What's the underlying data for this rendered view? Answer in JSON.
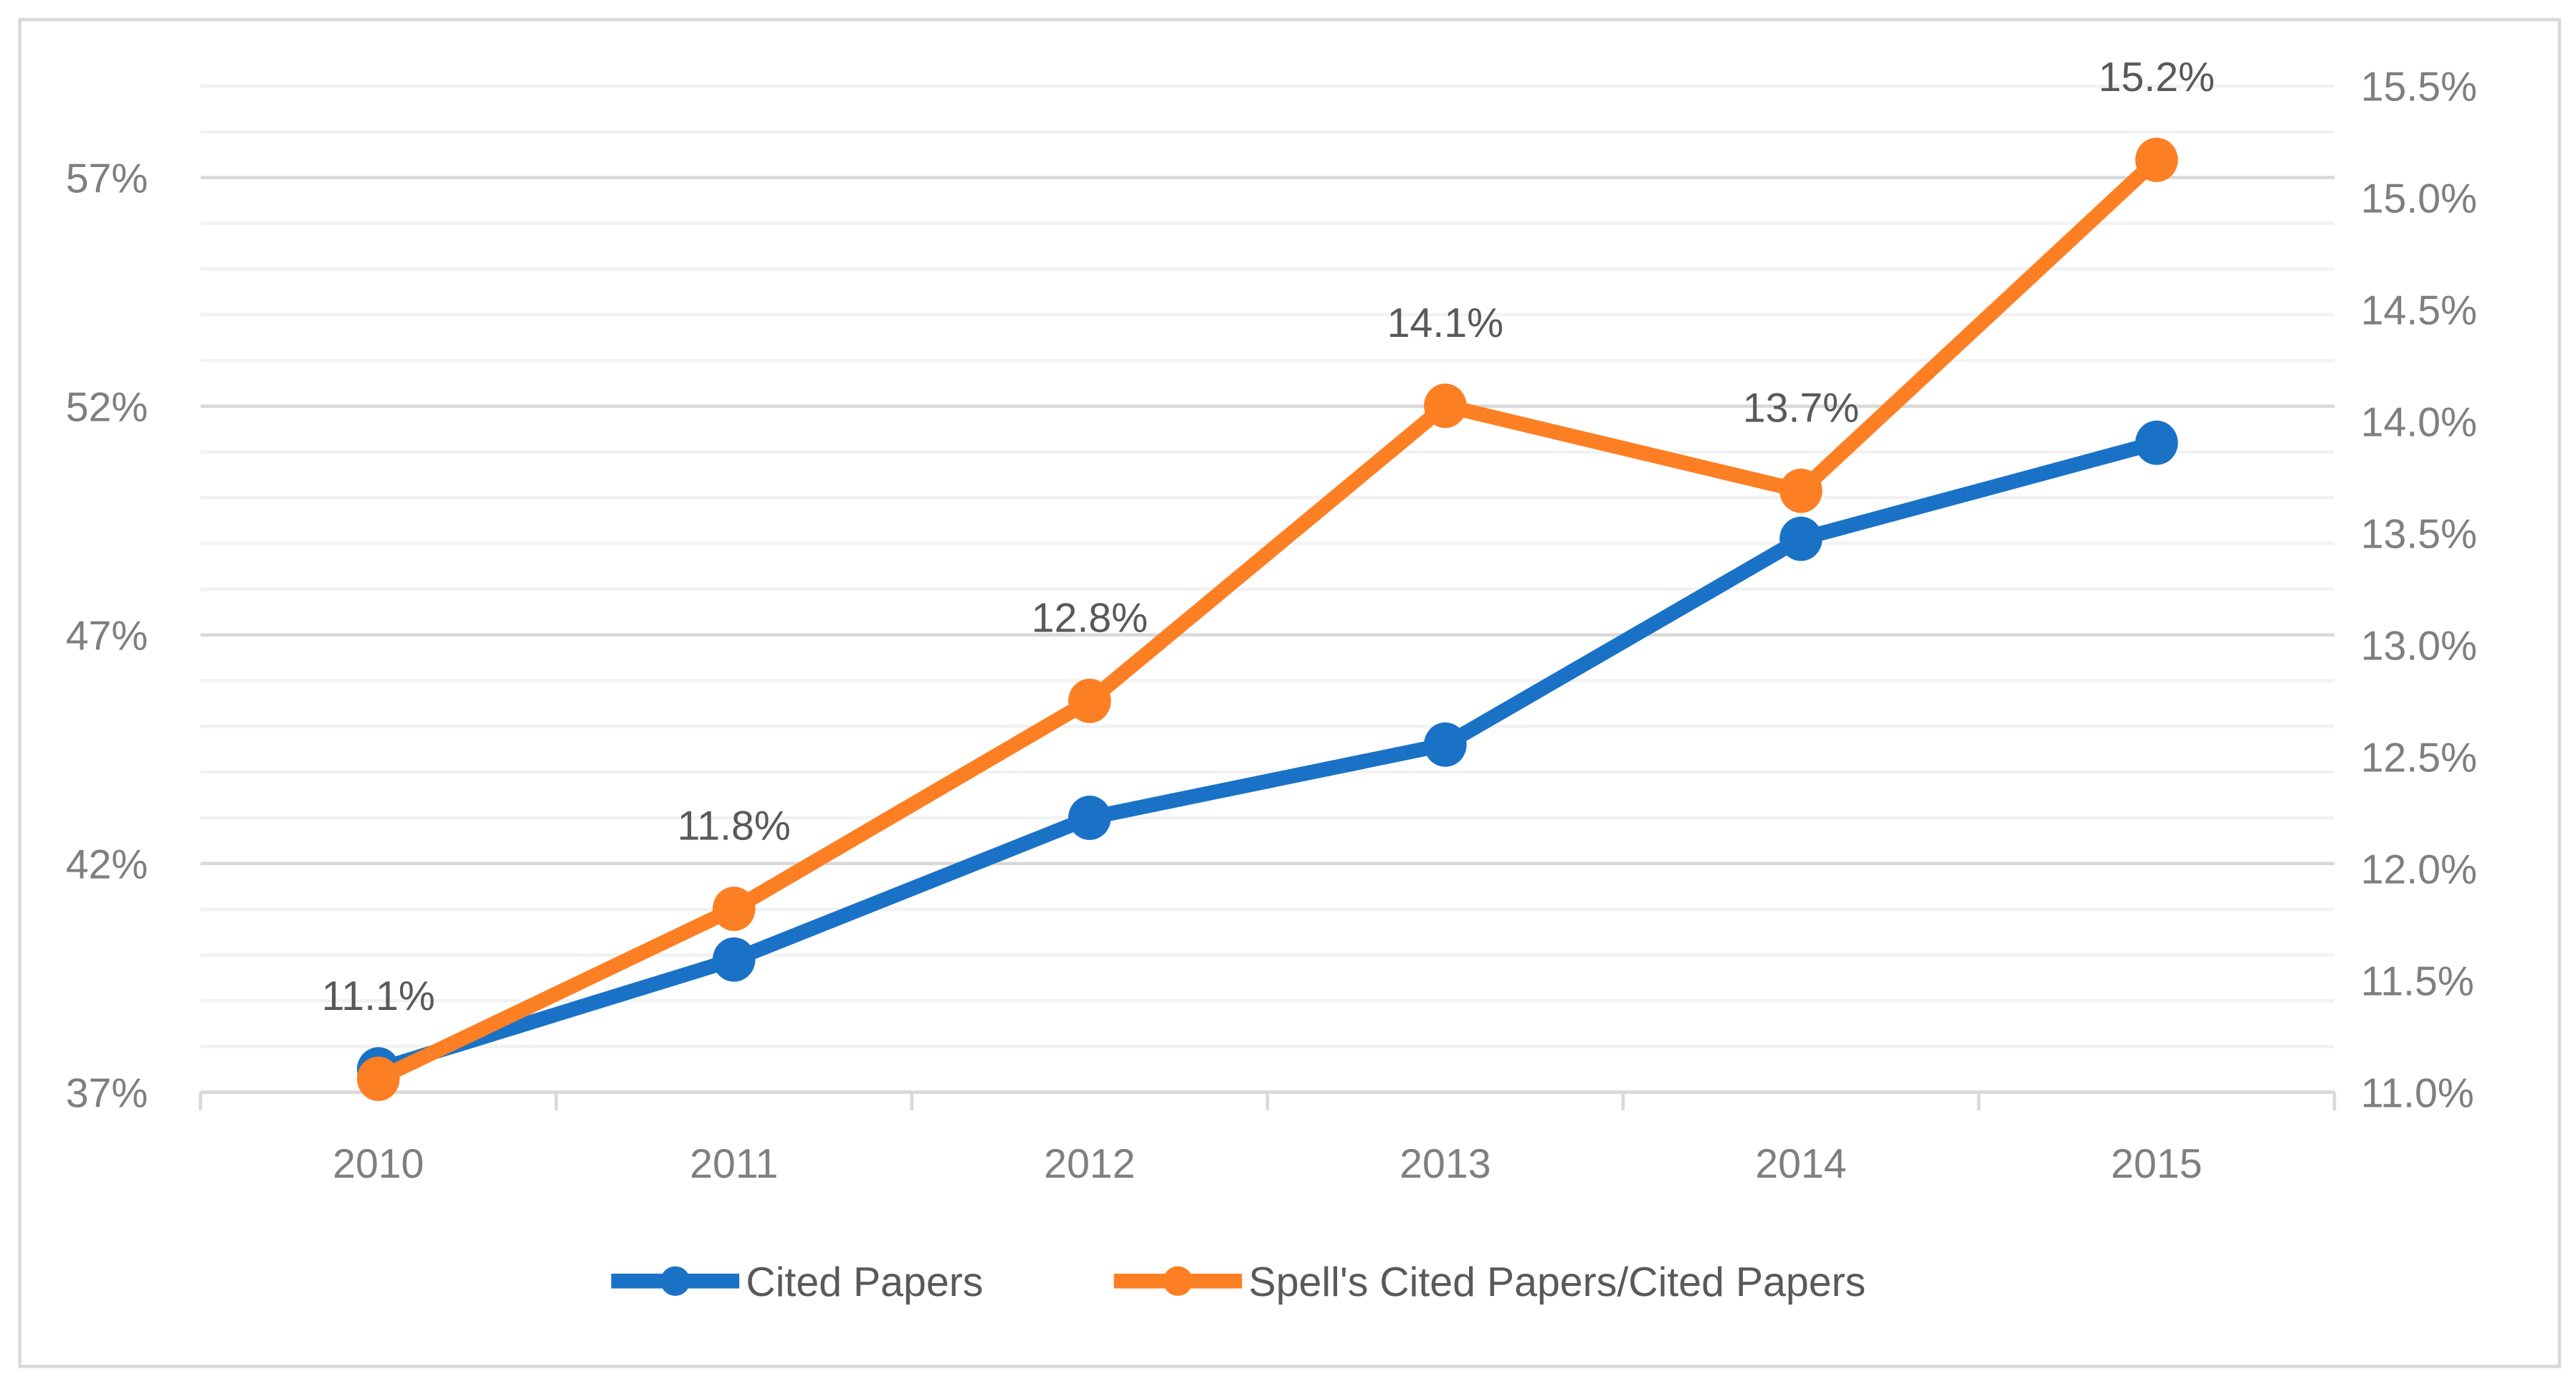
{
  "chart_data": {
    "type": "line",
    "title": "",
    "categories": [
      "2010",
      "2011",
      "2012",
      "2013",
      "2014",
      "2015"
    ],
    "y_left": {
      "ticks": [
        "37%",
        "42%",
        "47%",
        "52%",
        "57%"
      ],
      "range": [
        37,
        59
      ],
      "minor_step": 1,
      "major_step": 5
    },
    "y_right": {
      "ticks": [
        "11.0%",
        "11.5%",
        "12.0%",
        "12.5%",
        "13.0%",
        "13.5%",
        "14.0%",
        "14.5%",
        "15.0%",
        "15.5%"
      ],
      "range": [
        11.0,
        15.5
      ]
    },
    "grid": true,
    "legend_position": "bottom",
    "series": [
      {
        "name": "Cited Papers",
        "axis": "left",
        "color": "#1a72c7",
        "values": [
          37.5,
          39.9,
          43.0,
          44.6,
          49.1,
          51.2
        ],
        "labels": []
      },
      {
        "name": "Spell's Cited Papers/Cited Papers",
        "axis": "right",
        "color": "#fd7f23",
        "values": [
          11.06,
          11.82,
          12.75,
          14.07,
          13.69,
          15.17
        ],
        "labels": [
          "11.1%",
          "11.8%",
          "12.8%",
          "14.1%",
          "13.7%",
          "15.2%"
        ]
      }
    ]
  }
}
